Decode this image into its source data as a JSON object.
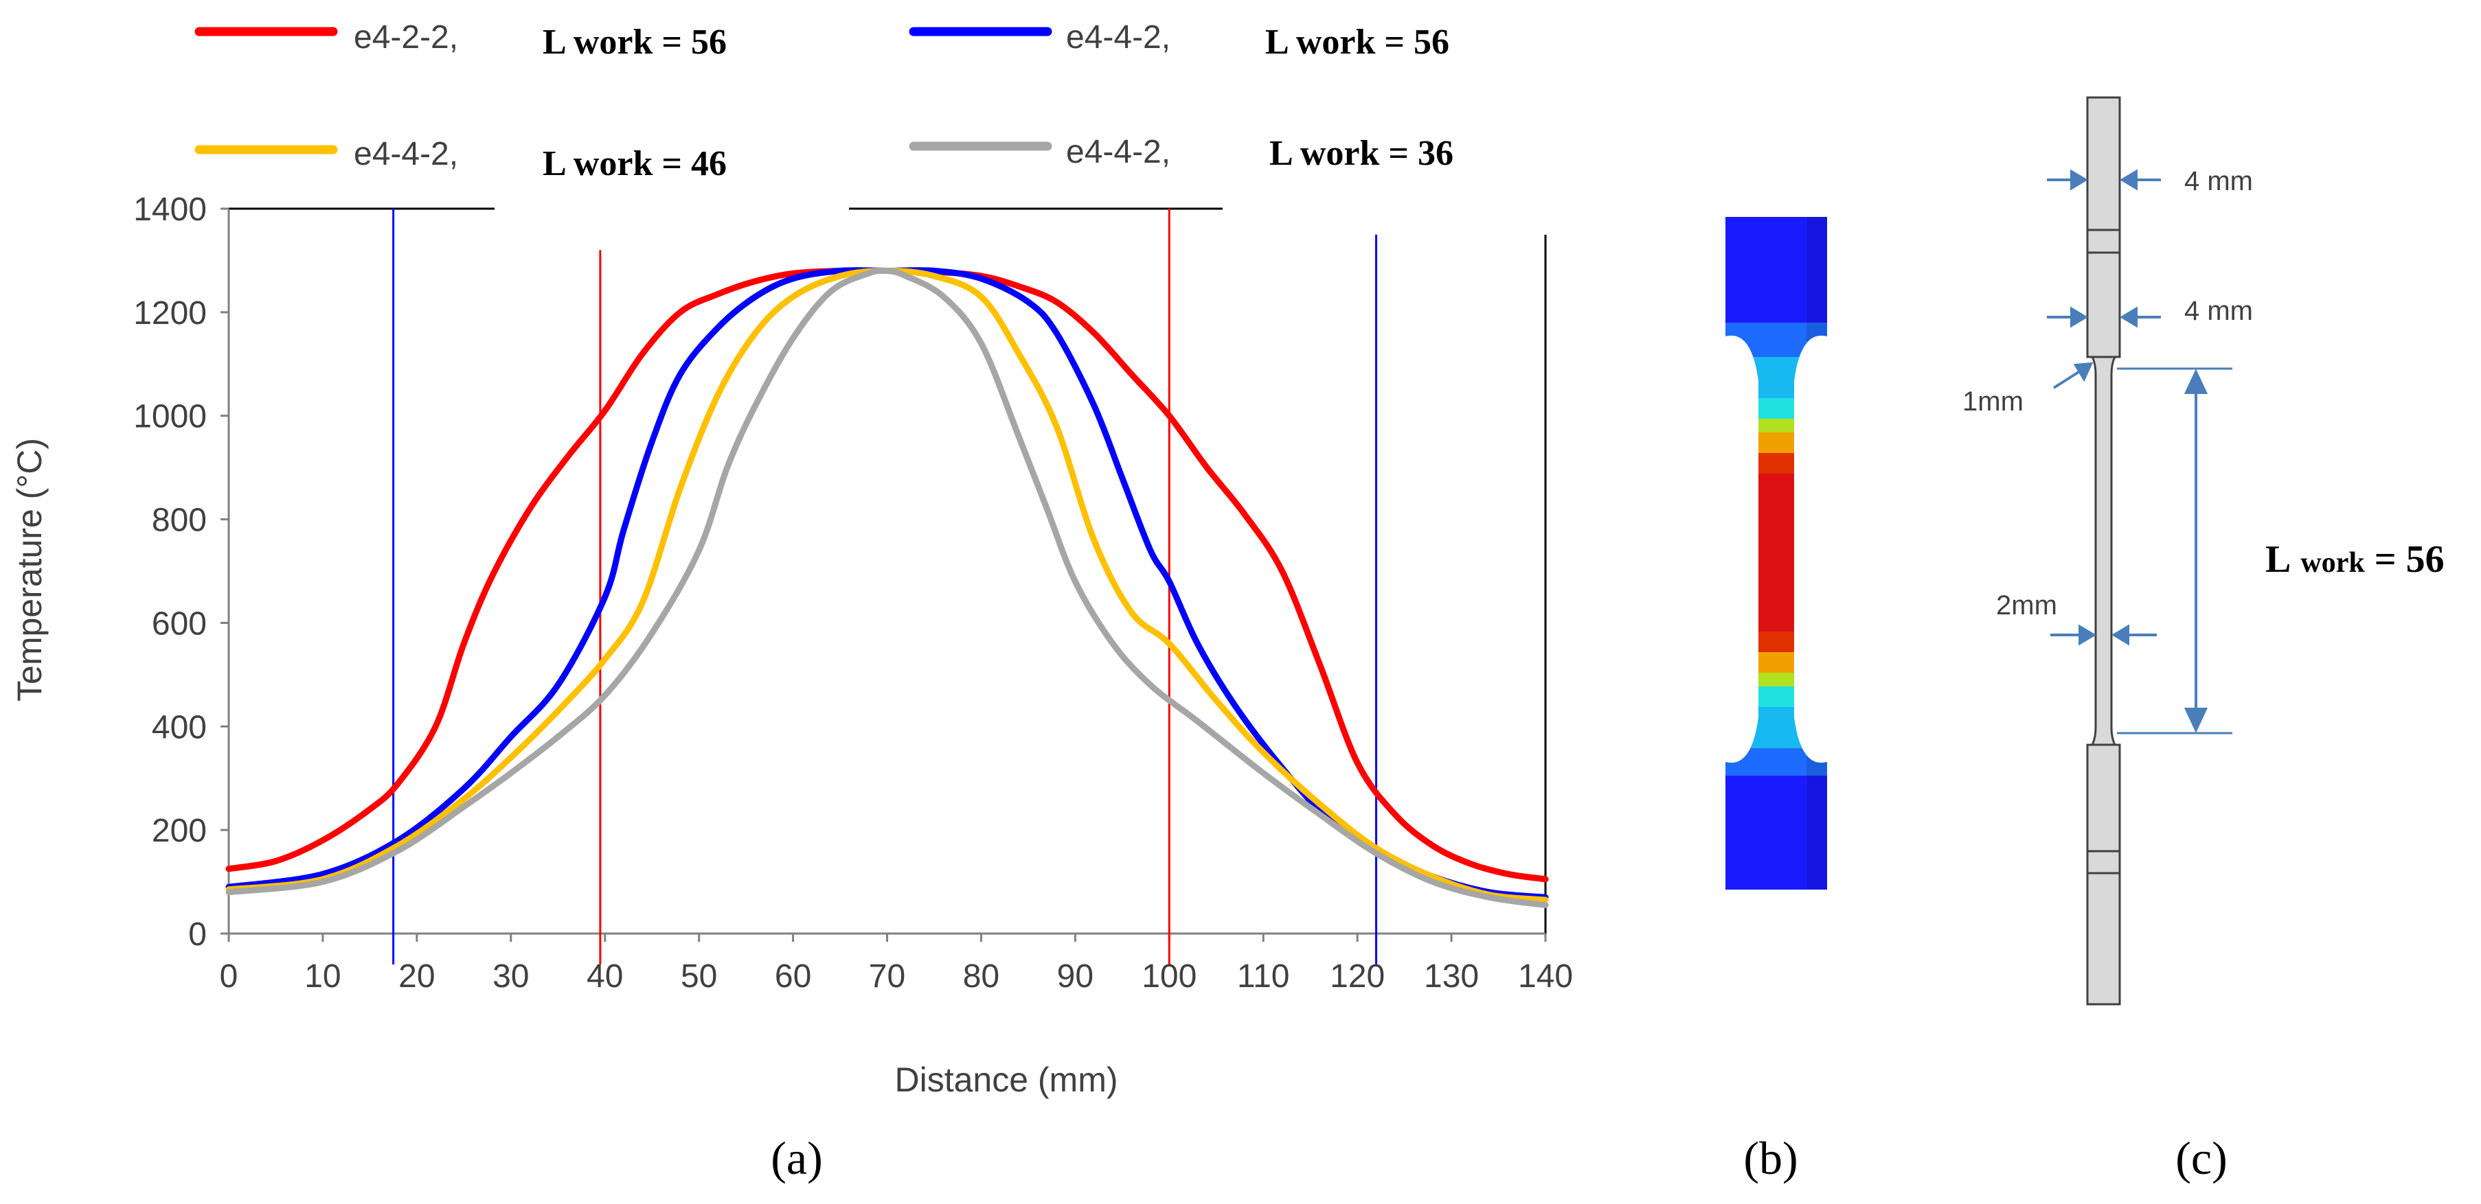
{
  "chart_data": {
    "type": "line",
    "title": "",
    "xlabel": "Distance (mm)",
    "ylabel": "Temperature  (°C)",
    "xlim": [
      0,
      140
    ],
    "ylim": [
      0,
      1400
    ],
    "xticks": [
      0,
      10,
      20,
      30,
      40,
      50,
      60,
      70,
      80,
      90,
      100,
      110,
      120,
      130,
      140
    ],
    "yticks": [
      0,
      200,
      400,
      600,
      800,
      1000,
      1200,
      1400
    ],
    "legend_position": "top",
    "series": [
      {
        "name": "e4-2-2,",
        "lwork_label": "L work = 56",
        "color": "#ff0000",
        "x": [
          0,
          5,
          10,
          15,
          18,
          22,
          25,
          28,
          32,
          36,
          40,
          44,
          48,
          52,
          56,
          60,
          65,
          70,
          75,
          80,
          84,
          88,
          92,
          96,
          100,
          104,
          108,
          112,
          116,
          120,
          124,
          128,
          132,
          136,
          140
        ],
        "y": [
          125,
          140,
          180,
          240,
          290,
          400,
          560,
          690,
          820,
          920,
          1010,
          1120,
          1200,
          1235,
          1260,
          1275,
          1280,
          1280,
          1278,
          1270,
          1250,
          1220,
          1160,
          1080,
          1000,
          900,
          810,
          700,
          520,
          330,
          230,
          170,
          135,
          115,
          105
        ]
      },
      {
        "name": "e4-4-2,",
        "lwork_label": "L work = 56",
        "color": "#0000ff",
        "x": [
          0,
          10,
          18,
          25,
          30,
          35,
          40,
          42,
          45,
          48,
          52,
          56,
          60,
          65,
          70,
          75,
          80,
          85,
          88,
          92,
          95,
          98,
          100,
          103,
          107,
          112,
          117,
          122,
          128,
          134,
          140
        ],
        "y": [
          90,
          115,
          180,
          280,
          380,
          480,
          650,
          780,
          950,
          1080,
          1170,
          1230,
          1265,
          1280,
          1280,
          1280,
          1265,
          1220,
          1160,
          1020,
          880,
          740,
          680,
          560,
          440,
          320,
          220,
          160,
          110,
          80,
          70
        ]
      },
      {
        "name": "e4-4-2,",
        "lwork_label": "L work = 46",
        "color": "#ffc000",
        "x": [
          0,
          10,
          18,
          25,
          30,
          35,
          40,
          44,
          48,
          52,
          56,
          60,
          65,
          70,
          75,
          80,
          84,
          88,
          92,
          96,
          100,
          105,
          110,
          116,
          122,
          128,
          134,
          140
        ],
        "y": [
          85,
          105,
          170,
          260,
          340,
          430,
          530,
          640,
          860,
          1040,
          1160,
          1230,
          1270,
          1280,
          1270,
          1230,
          1120,
          980,
          760,
          620,
          560,
          450,
          350,
          250,
          165,
          110,
          75,
          65
        ]
      },
      {
        "name": "e4-4-2,",
        "lwork_label": "L work = 36",
        "color": "#a6a6a6",
        "x": [
          0,
          10,
          18,
          25,
          30,
          35,
          40,
          45,
          50,
          53,
          56,
          60,
          64,
          68,
          70,
          72,
          76,
          80,
          84,
          87,
          90,
          94,
          98,
          103,
          110,
          116,
          122,
          128,
          134,
          140
        ],
        "y": [
          80,
          100,
          160,
          245,
          310,
          380,
          460,
          580,
          740,
          900,
          1020,
          1150,
          1240,
          1275,
          1280,
          1270,
          1230,
          1140,
          960,
          820,
          680,
          560,
          480,
          410,
          310,
          230,
          155,
          100,
          70,
          55
        ]
      }
    ],
    "reference_lines": [
      {
        "x": 17.5,
        "color": "#0000ff"
      },
      {
        "x": 39.5,
        "color": "#ff0000"
      },
      {
        "x": 100,
        "color": "#ff0000"
      },
      {
        "x": 122,
        "color": "#0000ff"
      }
    ]
  },
  "panel_labels": {
    "a": "(a)",
    "b": "(b)",
    "c": "(c)"
  },
  "specimen_diagram": {
    "dim_top_grip": "4 mm",
    "dim_shoulder": "4 mm",
    "dim_fillet": "1mm",
    "dim_gauge": "2mm",
    "lwork_prefix": "L",
    "lwork_sub": "work",
    "lwork_value": "= 56"
  },
  "fem_contour": {
    "colors": [
      "#1a1aff",
      "#1e6bff",
      "#18b8f0",
      "#20e0e0",
      "#f0a000",
      "#e03000",
      "#dd1111"
    ]
  }
}
